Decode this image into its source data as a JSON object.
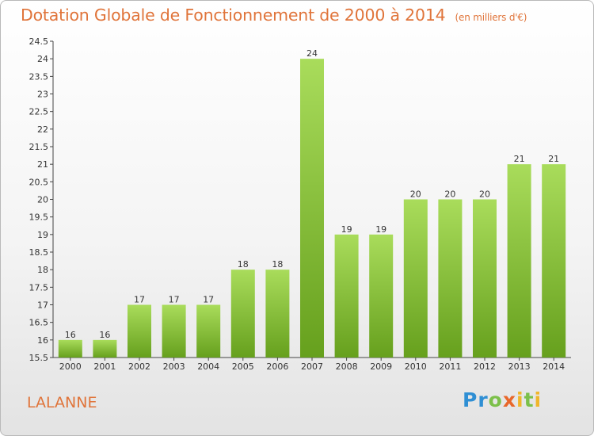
{
  "title": "Dotation Globale de Fonctionnement de 2000 à 2014",
  "unit": "(en milliers d'€)",
  "commune": "LALANNE",
  "logo": {
    "letters": [
      "P",
      "r",
      "o",
      "x",
      "i",
      "t",
      "i"
    ],
    "colors": [
      "#2f8fd4",
      "#2f8fd4",
      "#7cc04a",
      "#e8672a",
      "#f0b62a",
      "#7cc04a",
      "#f0b62a"
    ]
  },
  "colors": {
    "bar_top": "#a9dc5b",
    "bar_bottom": "#66a01d",
    "title": "#e0743a"
  },
  "chart_data": {
    "type": "bar",
    "categories": [
      "2000",
      "2001",
      "2002",
      "2003",
      "2004",
      "2005",
      "2006",
      "2007",
      "2008",
      "2009",
      "2010",
      "2011",
      "2012",
      "2013",
      "2014"
    ],
    "values": [
      16,
      16,
      17,
      17,
      17,
      18,
      18,
      24,
      19,
      19,
      20,
      20,
      20,
      21,
      21
    ],
    "title": "Dotation Globale de Fonctionnement de 2000 à 2014",
    "xlabel": "",
    "ylabel": "",
    "ylim": [
      15.5,
      24.5
    ],
    "yticks": [
      "15.5",
      "16",
      "16.5",
      "17",
      "17.5",
      "18",
      "18.5",
      "19",
      "19.5",
      "20",
      "20.5",
      "21",
      "21.5",
      "22",
      "22.5",
      "23",
      "23.5",
      "24",
      "24.5"
    ],
    "grid": false,
    "legend": "none"
  }
}
